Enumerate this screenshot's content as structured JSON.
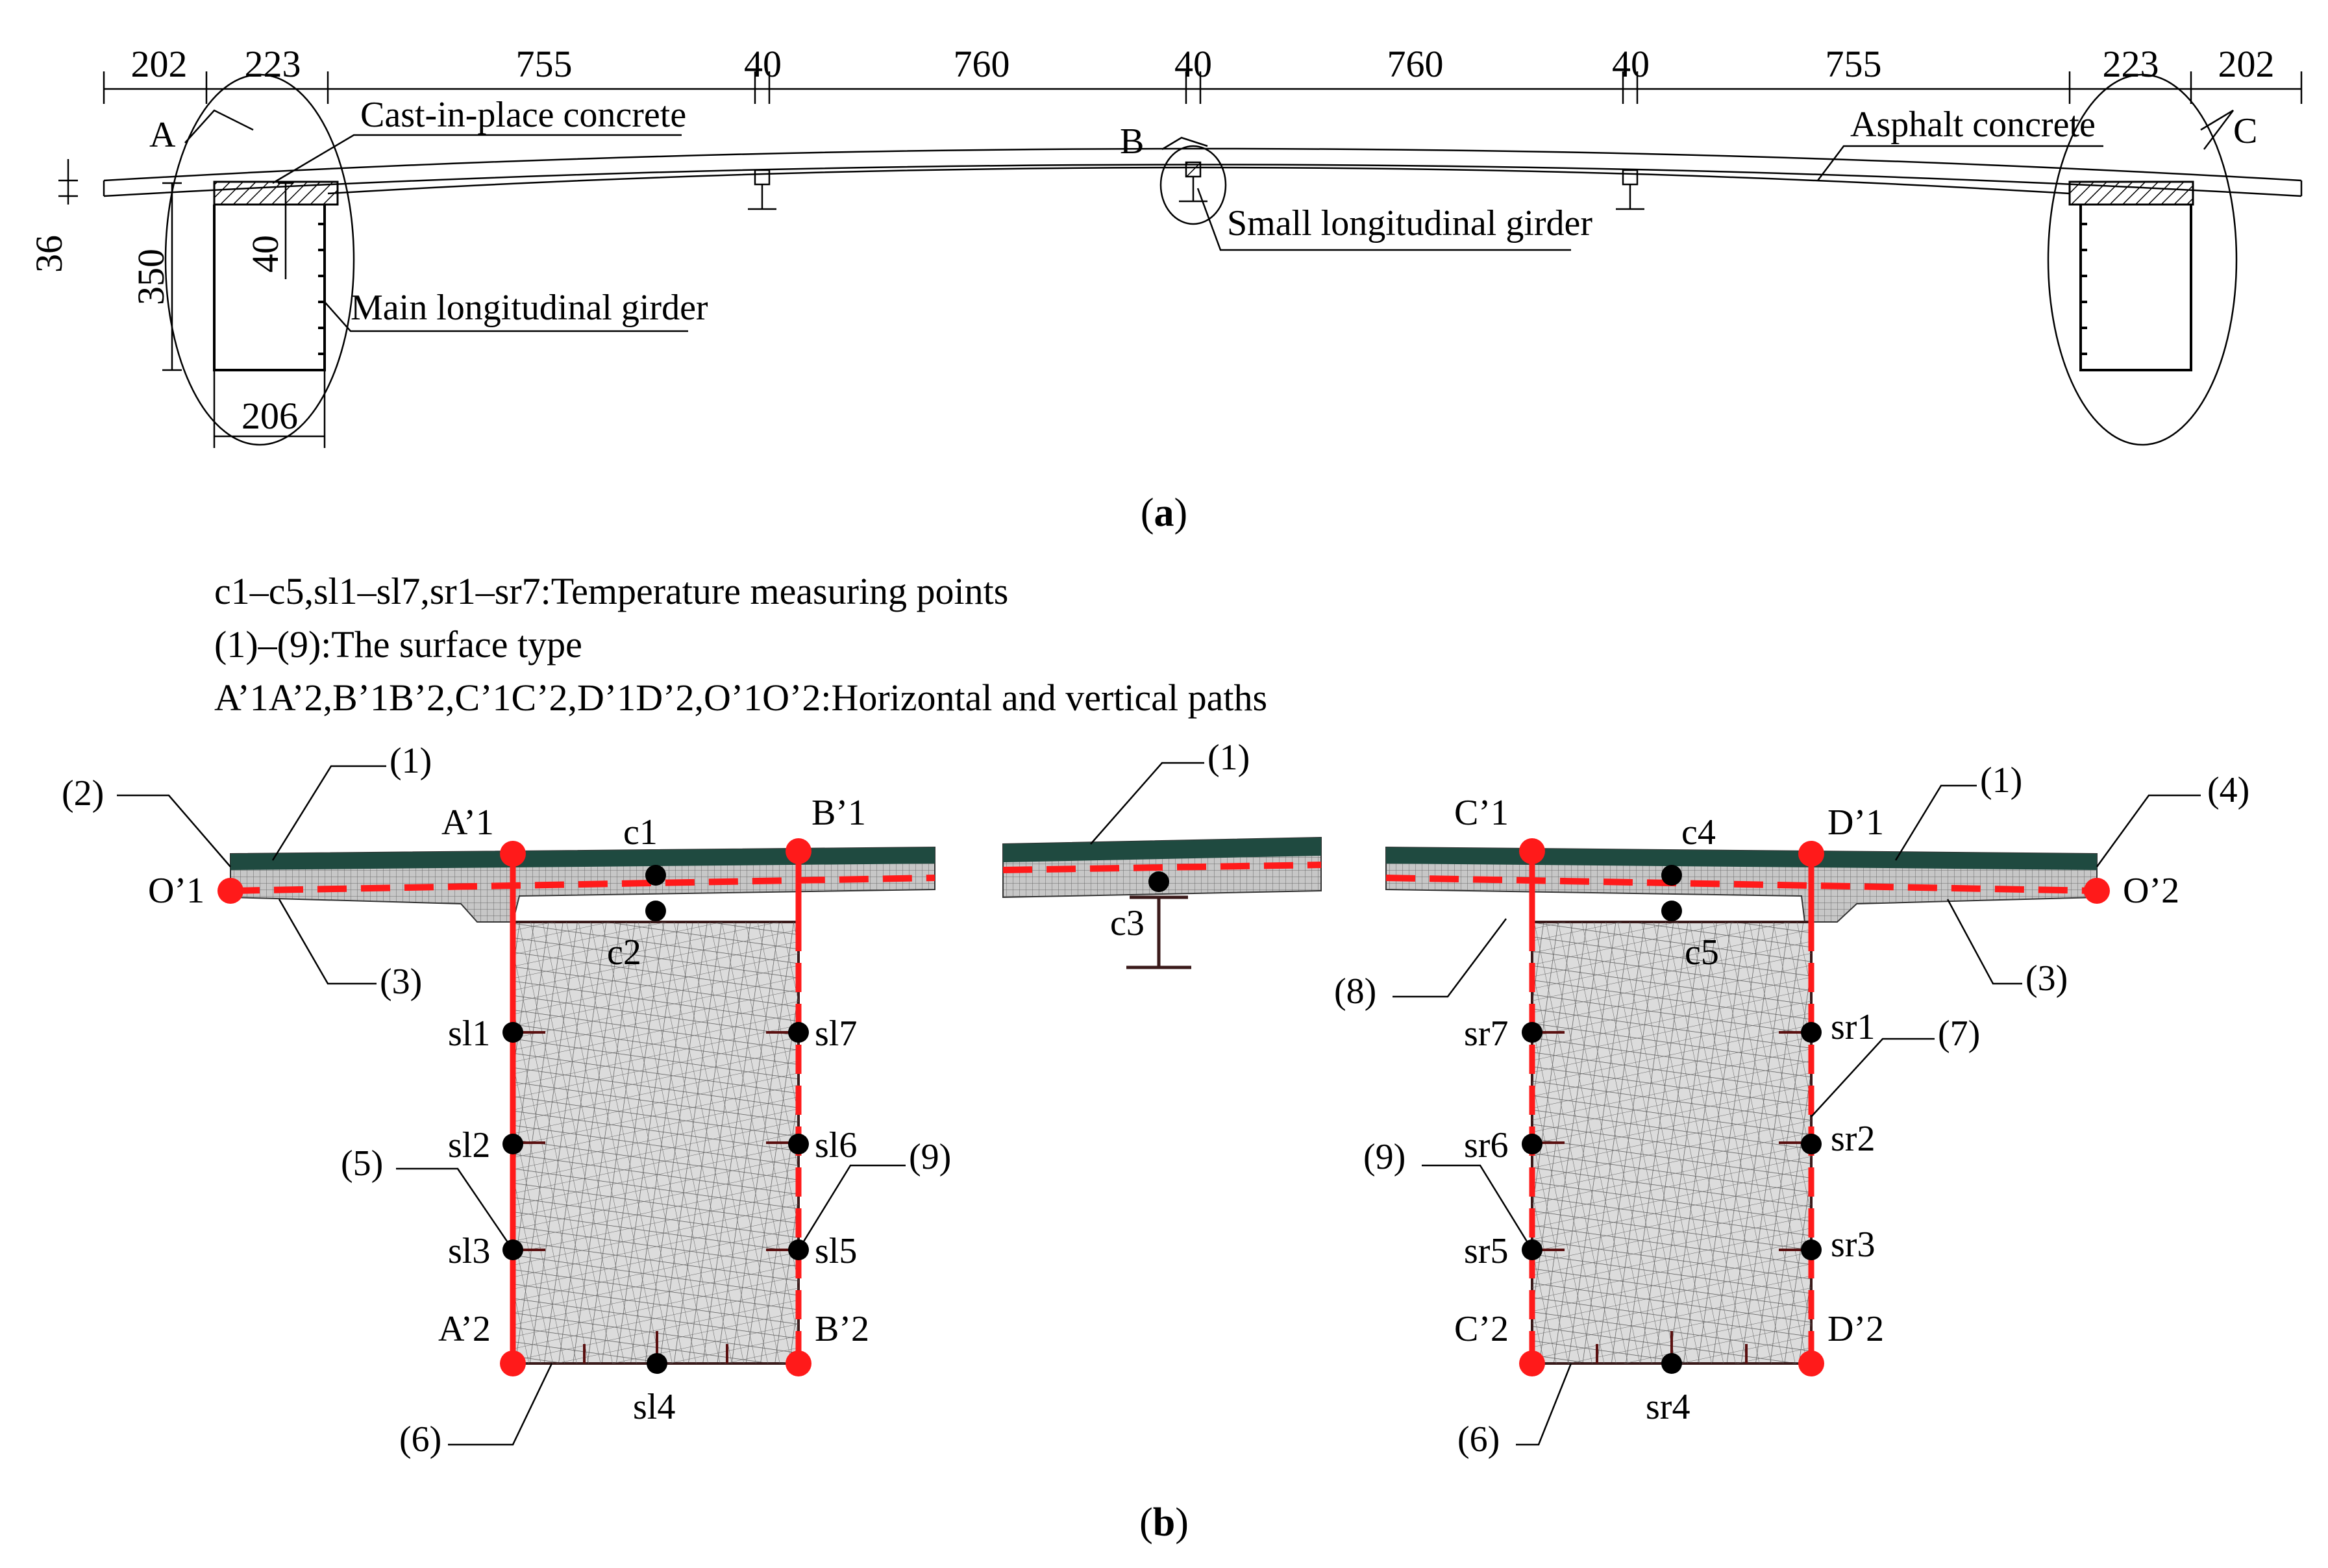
{
  "part_a": {
    "caption": "(a)",
    "caption_letter": "a",
    "dims_top": [
      "202",
      "223",
      "755",
      "40",
      "760",
      "40",
      "760",
      "40",
      "755",
      "223",
      "202"
    ],
    "dim_36": "36",
    "dim_350": "350",
    "dim_40": "40",
    "dim_206": "206",
    "label_A": "A",
    "label_B": "B",
    "label_C": "C",
    "callout_cast": "Cast-in-place concrete",
    "callout_asphalt": "Asphalt concrete",
    "callout_small_girder": "Small longitudinal girder",
    "callout_main_girder": "Main longitudinal girder"
  },
  "part_b": {
    "caption": "(b)",
    "caption_letter": "b",
    "legend": [
      "c1–c5,sl1–sl7,sr1–sr7:Temperature measuring points",
      "(1)–(9):The surface type",
      "A’1A’2,B’1B’2,C’1C’2,D’1D’2,O’1O’2:Horizontal and vertical paths"
    ],
    "surface_labels": {
      "s1_left": "(1)",
      "s2": "(2)",
      "s3_left": "(3)",
      "s5": "(5)",
      "s6_left": "(6)",
      "s9_left": "(9)",
      "s1_mid": "(1)",
      "s1_right": "(1)",
      "s4": "(4)",
      "s3_right": "(3)",
      "s7": "(7)",
      "s8": "(8)",
      "s9_right": "(9)",
      "s6_right": "(6)"
    },
    "path_labels": {
      "O1": "O’1",
      "O2": "O’2",
      "A1": "A’1",
      "A2": "A’2",
      "B1": "B’1",
      "B2": "B’2",
      "C1": "C’1",
      "C2": "C’2",
      "D1": "D’1",
      "D2": "D’2"
    },
    "points_left": {
      "c1": "c1",
      "c2": "c2",
      "sl1": "sl1",
      "sl2": "sl2",
      "sl3": "sl3",
      "sl4": "sl4",
      "sl5": "sl5",
      "sl6": "sl6",
      "sl7": "sl7"
    },
    "point_mid": {
      "c3": "c3"
    },
    "points_right": {
      "c4": "c4",
      "c5": "c5",
      "sr1": "sr1",
      "sr2": "sr2",
      "sr3": "sr3",
      "sr4": "sr4",
      "sr5": "sr5",
      "sr6": "sr6",
      "sr7": "sr7"
    }
  },
  "colors": {
    "path_red": "#ff1a1a",
    "deck_top": "#1f4a40",
    "deck_body": "#c9c9c9",
    "girder_fill": "#d9d9d9",
    "ink": "#000000"
  }
}
